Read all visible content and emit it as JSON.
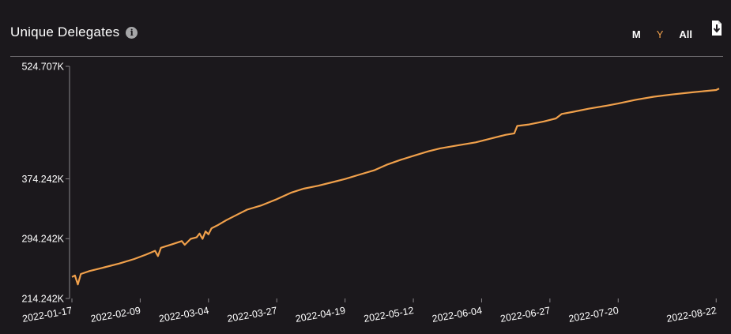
{
  "header": {
    "title": "Unique Delegates",
    "info_icon": "info-icon",
    "range_buttons": [
      "M",
      "Y",
      "All"
    ],
    "active_range": "Y",
    "download_icon": "download-icon"
  },
  "colors": {
    "background": "#1b181c",
    "line": "#f0a04b",
    "active_button": "#f0a04b",
    "axis": "#8a878b"
  },
  "chart_data": {
    "type": "line",
    "title": "Unique Delegates",
    "xlabel": "",
    "ylabel": "",
    "x_ticks": [
      "2022-01-17",
      "2022-02-09",
      "2022-03-04",
      "2022-03-27",
      "2022-04-19",
      "2022-05-12",
      "2022-06-04",
      "2022-06-27",
      "2022-07-20",
      "2022-08-22"
    ],
    "y_ticks": [
      "214.242K",
      "294.242K",
      "374.242K",
      "524.707K"
    ],
    "ylim": [
      214242,
      524707
    ],
    "grid": false,
    "series": [
      {
        "values": [
          [
            "2022-01-17",
            243000
          ],
          [
            "2022-01-18",
            245000
          ],
          [
            "2022-01-19",
            233000
          ],
          [
            "2022-01-20",
            247000
          ],
          [
            "2022-01-23",
            251000
          ],
          [
            "2022-01-28",
            256000
          ],
          [
            "2022-02-02",
            261000
          ],
          [
            "2022-02-07",
            267000
          ],
          [
            "2022-02-11",
            273000
          ],
          [
            "2022-02-14",
            278000
          ],
          [
            "2022-02-15",
            271000
          ],
          [
            "2022-02-16",
            282000
          ],
          [
            "2022-02-20",
            287000
          ],
          [
            "2022-02-23",
            291000
          ],
          [
            "2022-02-24",
            286000
          ],
          [
            "2022-02-26",
            294000
          ],
          [
            "2022-02-28",
            296000
          ],
          [
            "2022-03-01",
            301000
          ],
          [
            "2022-03-02",
            294000
          ],
          [
            "2022-03-03",
            304000
          ],
          [
            "2022-03-04",
            300000
          ],
          [
            "2022-03-05",
            308000
          ],
          [
            "2022-03-07",
            312000
          ],
          [
            "2022-03-10",
            319000
          ],
          [
            "2022-03-14",
            327000
          ],
          [
            "2022-03-17",
            333000
          ],
          [
            "2022-03-22",
            339000
          ],
          [
            "2022-03-27",
            347000
          ],
          [
            "2022-04-01",
            356000
          ],
          [
            "2022-04-05",
            361000
          ],
          [
            "2022-04-10",
            365000
          ],
          [
            "2022-04-15",
            370000
          ],
          [
            "2022-04-19",
            374000
          ],
          [
            "2022-04-24",
            380000
          ],
          [
            "2022-04-29",
            386000
          ],
          [
            "2022-05-03",
            393000
          ],
          [
            "2022-05-08",
            400000
          ],
          [
            "2022-05-12",
            405000
          ],
          [
            "2022-05-17",
            411000
          ],
          [
            "2022-05-21",
            415000
          ],
          [
            "2022-05-27",
            419000
          ],
          [
            "2022-06-02",
            423000
          ],
          [
            "2022-06-07",
            428000
          ],
          [
            "2022-06-12",
            433000
          ],
          [
            "2022-06-15",
            435000
          ],
          [
            "2022-06-16",
            445000
          ],
          [
            "2022-06-20",
            447000
          ],
          [
            "2022-06-25",
            451000
          ],
          [
            "2022-06-29",
            455000
          ],
          [
            "2022-07-01",
            461000
          ],
          [
            "2022-07-05",
            464000
          ],
          [
            "2022-07-10",
            468000
          ],
          [
            "2022-07-16",
            472000
          ],
          [
            "2022-07-20",
            475000
          ],
          [
            "2022-07-26",
            480000
          ],
          [
            "2022-08-01",
            484000
          ],
          [
            "2022-08-07",
            487000
          ],
          [
            "2022-08-14",
            490000
          ],
          [
            "2022-08-22",
            493000
          ],
          [
            "2022-08-23",
            495000
          ]
        ]
      }
    ]
  }
}
